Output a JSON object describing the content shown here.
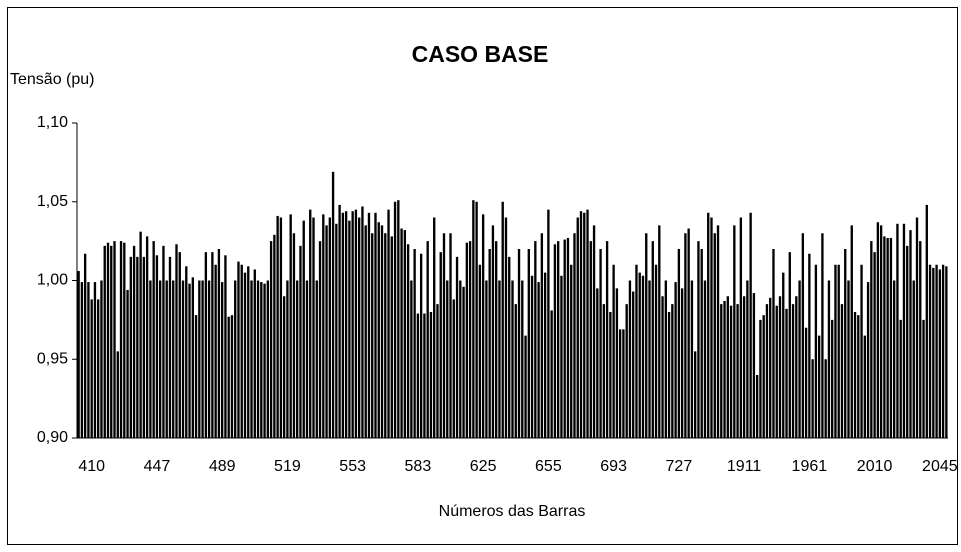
{
  "chart_data": {
    "type": "bar",
    "title": "CASO BASE",
    "y_label": "Tensão (pu)",
    "x_label": "Números das Barras",
    "color": "#000000",
    "ylim": [
      0.9,
      1.1
    ],
    "yticks": [
      {
        "value": 0.9,
        "label": "0,90"
      },
      {
        "value": 0.95,
        "label": "0,95"
      },
      {
        "value": 1.0,
        "label": "1,00"
      },
      {
        "value": 1.05,
        "label": "1,05"
      },
      {
        "value": 1.1,
        "label": "1,10"
      }
    ],
    "categories": [
      null,
      null,
      null,
      null,
      "410",
      null,
      null,
      null,
      null,
      null,
      null,
      null,
      null,
      null,
      null,
      null,
      null,
      null,
      null,
      null,
      null,
      null,
      null,
      null,
      "447",
      null,
      null,
      null,
      null,
      null,
      null,
      null,
      null,
      null,
      null,
      null,
      null,
      null,
      null,
      null,
      null,
      null,
      null,
      null,
      "489",
      null,
      null,
      null,
      null,
      null,
      null,
      null,
      null,
      null,
      null,
      null,
      null,
      null,
      null,
      null,
      null,
      null,
      null,
      null,
      "519",
      null,
      null,
      null,
      null,
      null,
      null,
      null,
      null,
      null,
      null,
      null,
      null,
      null,
      null,
      null,
      null,
      null,
      null,
      null,
      "553",
      null,
      null,
      null,
      null,
      null,
      null,
      null,
      null,
      null,
      null,
      null,
      null,
      null,
      null,
      null,
      null,
      null,
      null,
      null,
      "583",
      null,
      null,
      null,
      null,
      null,
      null,
      null,
      null,
      null,
      null,
      null,
      null,
      null,
      null,
      null,
      null,
      null,
      null,
      null,
      "625",
      null,
      null,
      null,
      null,
      null,
      null,
      null,
      null,
      null,
      null,
      null,
      null,
      null,
      null,
      null,
      null,
      null,
      null,
      null,
      "655",
      null,
      null,
      null,
      null,
      null,
      null,
      null,
      null,
      null,
      null,
      null,
      null,
      null,
      null,
      null,
      null,
      null,
      null,
      null,
      "693",
      null,
      null,
      null,
      null,
      null,
      null,
      null,
      null,
      null,
      null,
      null,
      null,
      null,
      null,
      null,
      null,
      null,
      null,
      null,
      "727",
      null,
      null,
      null,
      null,
      null,
      null,
      null,
      null,
      null,
      null,
      null,
      null,
      null,
      null,
      null,
      null,
      null,
      null,
      null,
      "1911",
      null,
      null,
      null,
      null,
      null,
      null,
      null,
      null,
      null,
      null,
      null,
      null,
      null,
      null,
      null,
      null,
      null,
      null,
      null,
      "1961",
      null,
      null,
      null,
      null,
      null,
      null,
      null,
      null,
      null,
      null,
      null,
      null,
      null,
      null,
      null,
      null,
      null,
      null,
      null,
      "2010",
      null,
      null,
      null,
      null,
      null,
      null,
      null,
      null,
      null,
      null,
      null,
      null,
      null,
      null,
      null,
      null,
      null,
      null,
      null,
      "2045",
      null,
      null
    ],
    "values": [
      1.006,
      0.999,
      1.017,
      0.999,
      0.988,
      0.999,
      0.988,
      1.0,
      1.022,
      1.024,
      1.022,
      1.025,
      0.955,
      1.025,
      1.024,
      0.994,
      1.015,
      1.022,
      1.015,
      1.031,
      1.015,
      1.028,
      1.0,
      1.025,
      1.016,
      1.0,
      1.022,
      1.0,
      1.015,
      1.0,
      1.023,
      1.018,
      1.0,
      1.009,
      0.998,
      1.002,
      0.978,
      1.0,
      1.0,
      1.018,
      1.0,
      1.018,
      1.01,
      1.02,
      0.999,
      1.016,
      0.977,
      0.978,
      1.0,
      1.012,
      1.01,
      1.005,
      1.009,
      1.0,
      1.007,
      1.0,
      0.999,
      0.998,
      1.0,
      1.025,
      1.029,
      1.041,
      1.04,
      0.99,
      1.0,
      1.042,
      1.03,
      1.0,
      1.022,
      1.038,
      1.0,
      1.045,
      1.04,
      1.0,
      1.025,
      1.042,
      1.035,
      1.04,
      1.069,
      1.036,
      1.048,
      1.043,
      1.044,
      1.038,
      1.044,
      1.045,
      1.04,
      1.047,
      1.035,
      1.043,
      1.03,
      1.043,
      1.037,
      1.035,
      1.03,
      1.045,
      1.028,
      1.05,
      1.051,
      1.033,
      1.032,
      1.023,
      1.0,
      1.02,
      0.979,
      1.017,
      0.979,
      1.025,
      0.98,
      1.04,
      0.985,
      1.018,
      1.03,
      1.0,
      1.03,
      0.988,
      1.015,
      1.0,
      0.996,
      1.024,
      1.025,
      1.051,
      1.05,
      1.01,
      1.042,
      1.0,
      1.02,
      1.035,
      1.025,
      1.0,
      1.05,
      1.04,
      1.015,
      1.0,
      0.985,
      1.02,
      1.0,
      0.965,
      1.02,
      1.003,
      1.025,
      0.999,
      1.03,
      1.005,
      1.045,
      0.981,
      1.023,
      1.025,
      1.003,
      1.026,
      1.027,
      1.01,
      1.03,
      1.04,
      1.044,
      1.043,
      1.045,
      1.025,
      1.035,
      0.995,
      1.02,
      0.985,
      1.025,
      0.98,
      1.01,
      0.995,
      0.969,
      0.969,
      0.985,
      1.0,
      0.993,
      1.01,
      1.005,
      1.003,
      1.03,
      1.0,
      1.025,
      1.01,
      1.035,
      0.99,
      1.0,
      0.98,
      0.985,
      0.999,
      1.02,
      0.995,
      1.03,
      1.033,
      1.0,
      0.955,
      1.025,
      1.02,
      1.0,
      1.043,
      1.04,
      1.03,
      1.035,
      0.985,
      0.987,
      0.99,
      0.984,
      1.035,
      0.985,
      1.04,
      0.99,
      1.0,
      1.043,
      0.992,
      0.94,
      0.975,
      0.978,
      0.985,
      0.989,
      1.02,
      0.984,
      0.99,
      1.005,
      0.982,
      1.018,
      0.985,
      0.99,
      1.0,
      1.03,
      0.97,
      1.017,
      0.95,
      1.01,
      0.965,
      1.03,
      0.95,
      1.0,
      0.975,
      1.01,
      1.01,
      0.985,
      1.02,
      1.0,
      1.035,
      0.98,
      0.978,
      1.01,
      0.965,
      0.999,
      1.025,
      1.018,
      1.037,
      1.035,
      1.028,
      1.027,
      1.027,
      1.0,
      1.036,
      0.975,
      1.036,
      1.022,
      1.032,
      1.0,
      1.04,
      1.025,
      0.975,
      1.048,
      1.01,
      1.008,
      1.01,
      1.007,
      1.01,
      1.009
    ]
  }
}
